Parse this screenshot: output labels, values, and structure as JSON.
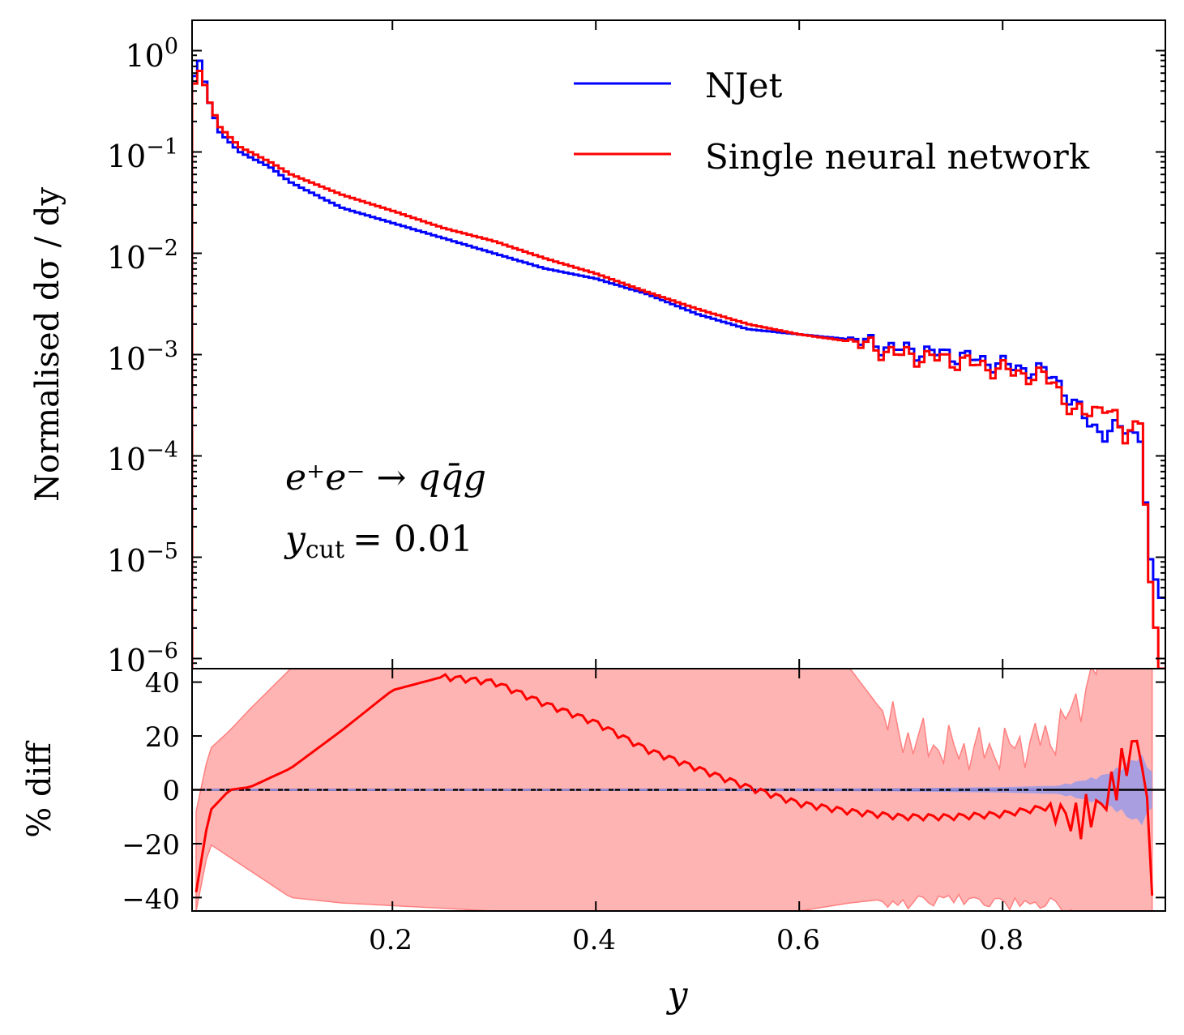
{
  "chart_data": [
    {
      "panel": "main",
      "type": "line",
      "style": "histogram-step",
      "yscale": "log",
      "xlim": [
        0.003,
        0.96
      ],
      "ylim_exp": [
        -6.1,
        0.3
      ],
      "xlabel": "y",
      "ylabel": "Normalised dσ / dy",
      "y_tick_labels": [
        {
          "value": 1,
          "base": "10",
          "exp": "0"
        },
        {
          "value": 0.1,
          "base": "10",
          "exp": "−1"
        },
        {
          "value": 0.01,
          "base": "10",
          "exp": "−2"
        },
        {
          "value": 0.001,
          "base": "10",
          "exp": "−3"
        },
        {
          "value": 0.0001,
          "base": "10",
          "exp": "−4"
        },
        {
          "value": 1e-05,
          "base": "10",
          "exp": "−5"
        },
        {
          "value": 1e-06,
          "base": "10",
          "exp": "−6"
        }
      ],
      "legend": {
        "placement": "top-right"
      },
      "annotation": {
        "process": "e⁺e⁻ → qq̄g",
        "cut_symbol": "y",
        "cut_sub": "cut",
        "cut_value": "= 0.01"
      },
      "anchors": {
        "x": [
          0.003,
          0.008,
          0.013,
          0.02,
          0.03,
          0.05,
          0.08,
          0.1,
          0.15,
          0.2,
          0.25,
          0.3,
          0.35,
          0.4,
          0.45,
          0.5,
          0.55,
          0.6,
          0.65,
          0.7,
          0.75,
          0.8,
          0.85,
          0.87,
          0.9,
          0.92,
          0.935,
          0.945,
          0.955,
          0.96
        ],
        "njet_log": [
          -0.5,
          0.0,
          -0.2,
          -0.5,
          -0.8,
          -1.0,
          -1.15,
          -1.3,
          -1.55,
          -1.7,
          -1.85,
          -2.0,
          -2.15,
          -2.25,
          -2.4,
          -2.6,
          -2.75,
          -2.8,
          -2.85,
          -2.95,
          -3.0,
          -3.1,
          -3.2,
          -3.5,
          -3.8,
          -3.7,
          -3.8,
          -5.0,
          -5.4,
          -5.4
        ],
        "nn_log": [
          -0.5,
          -0.15,
          -0.25,
          -0.5,
          -0.75,
          -0.95,
          -1.1,
          -1.22,
          -1.42,
          -1.58,
          -1.75,
          -1.88,
          -2.05,
          -2.2,
          -2.38,
          -2.55,
          -2.7,
          -2.8,
          -2.87,
          -3.0,
          -3.05,
          -3.15,
          -3.25,
          -3.6,
          -3.5,
          -3.8,
          -3.6,
          -5.2,
          -6.1,
          -6.1
        ]
      },
      "series": [
        {
          "name": "NJet",
          "color": "#0000ff"
        },
        {
          "name": "Single neural network",
          "color": "#ff0000"
        }
      ]
    },
    {
      "panel": "ratio",
      "type": "line",
      "ylabel": "% diff",
      "xlabel": "y",
      "xlim": [
        0.003,
        0.96
      ],
      "ylim": [
        -45,
        45
      ],
      "x_ticks": [
        0.2,
        0.4,
        0.6,
        0.8
      ],
      "x_tick_labels": [
        "0.2",
        "0.4",
        "0.6",
        "0.8"
      ],
      "y_ticks": [
        40,
        20,
        0,
        -20,
        -40
      ],
      "y_tick_labels": [
        "40",
        "20",
        "0",
        "−20",
        "−40"
      ],
      "reference_line": 0,
      "anchors": {
        "x": [
          0.007,
          0.02,
          0.04,
          0.06,
          0.1,
          0.15,
          0.2,
          0.25,
          0.3,
          0.35,
          0.4,
          0.45,
          0.5,
          0.55,
          0.6,
          0.65,
          0.7,
          0.75,
          0.8,
          0.85,
          0.87,
          0.9,
          0.92,
          0.935,
          0.94,
          0.95
        ],
        "diff": [
          -38,
          -8,
          0,
          1,
          8,
          22,
          37,
          42,
          40,
          32,
          25,
          15,
          8,
          1,
          -5,
          -8,
          -10,
          -10,
          -9,
          -6,
          -12,
          -5,
          10,
          20,
          0,
          -45
        ],
        "band_upper": [
          -8,
          15,
          22,
          30,
          45,
          60,
          60,
          60,
          60,
          60,
          60,
          60,
          60,
          60,
          60,
          45,
          20,
          15,
          15,
          20,
          30,
          50,
          60,
          60,
          60,
          60
        ],
        "band_lower": [
          -45,
          -20,
          -25,
          -30,
          -40,
          -42,
          -43,
          -44,
          -45,
          -45,
          -45,
          -45,
          -45,
          -45,
          -45,
          -42,
          -40,
          -38,
          -40,
          -40,
          -45,
          -45,
          -45,
          -45,
          -45,
          -45
        ],
        "blue_half_width": [
          0.2,
          0.2,
          0.2,
          0.2,
          0.2,
          0.2,
          0.3,
          0.3,
          0.3,
          0.3,
          0.3,
          0.4,
          0.4,
          0.5,
          0.5,
          0.5,
          0.6,
          0.8,
          1.0,
          1.5,
          3.0,
          6.0,
          10.0,
          14.0,
          12.0,
          5.0
        ]
      },
      "series": [
        {
          "name": "Single neural network",
          "color": "#ff0000",
          "band_color": "#ffb0b0"
        },
        {
          "name": "NJet",
          "color": "#0000ff",
          "band_color": "#9a9ae6"
        }
      ]
    }
  ]
}
